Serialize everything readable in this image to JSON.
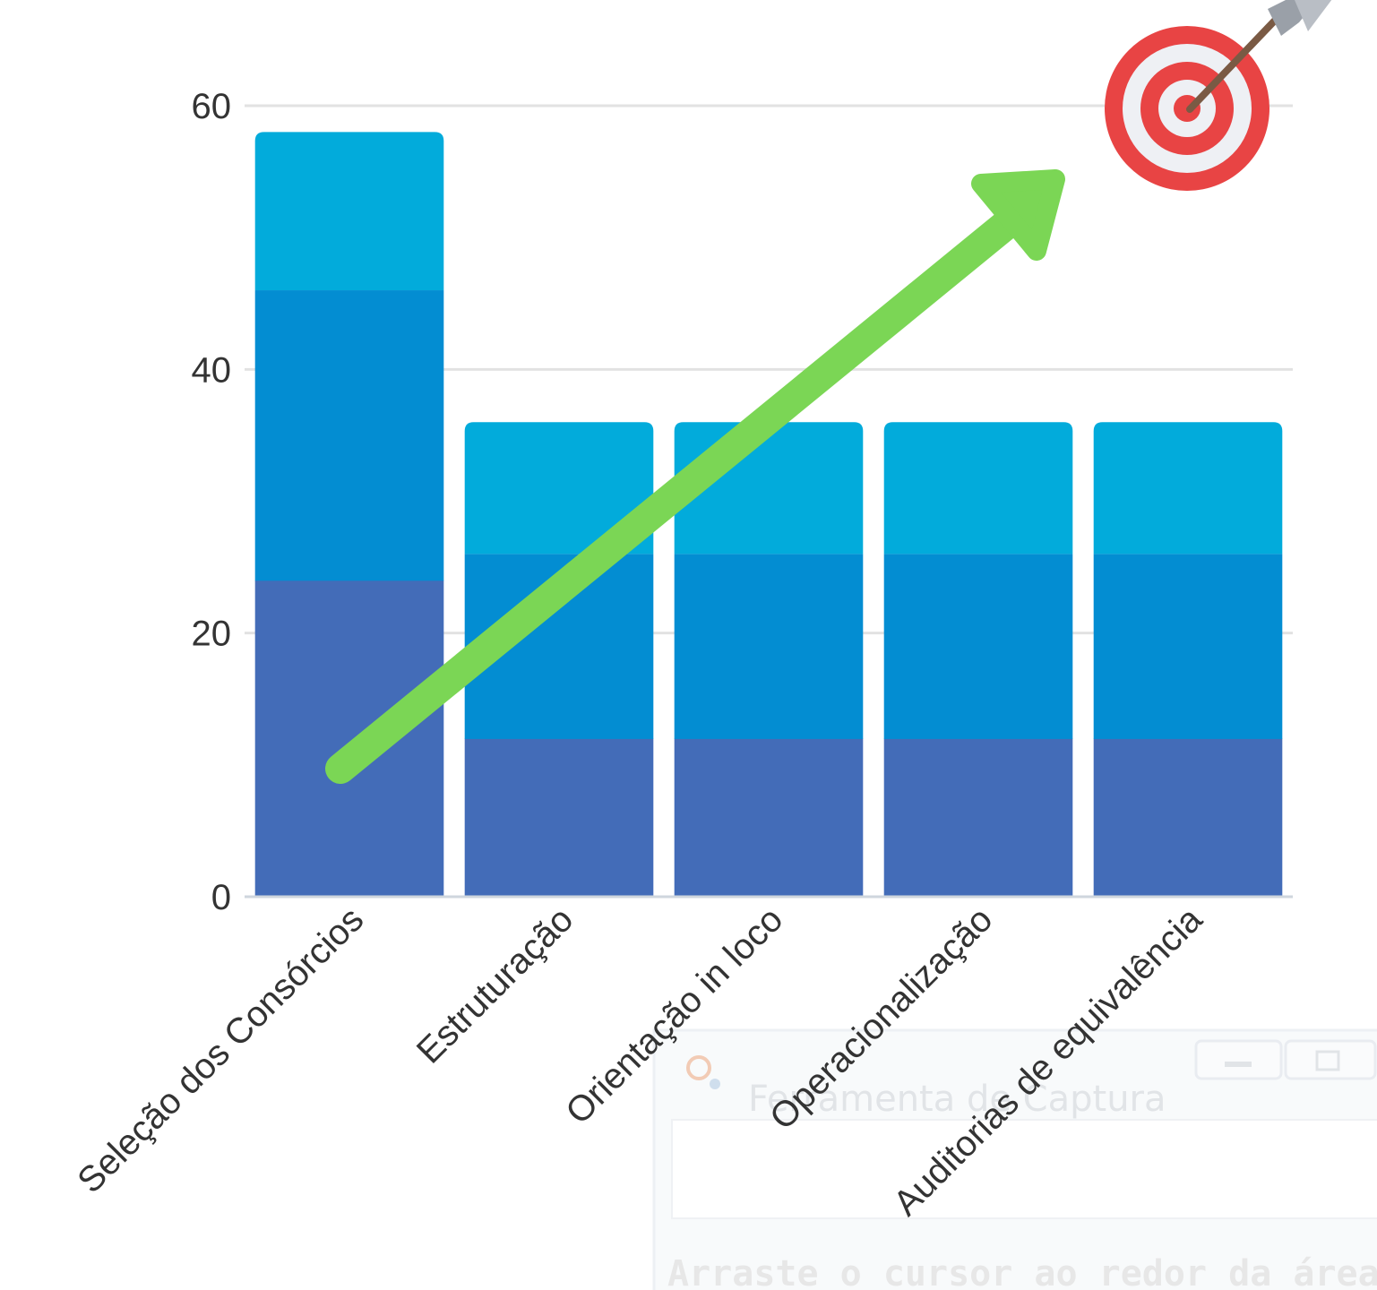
{
  "chart_data": {
    "type": "bar",
    "stacked": true,
    "categories": [
      "Seleção dos Consórcios",
      "Estruturação",
      "Orientação in loco",
      "Operacionalização",
      "Auditorias de equivalência"
    ],
    "series": [
      {
        "color": "#436cb8",
        "values": [
          24,
          12,
          12,
          12,
          12
        ]
      },
      {
        "color": "#038dd2",
        "values": [
          22,
          14,
          14,
          14,
          14
        ]
      },
      {
        "color": "#02abdb",
        "values": [
          12,
          10,
          10,
          10,
          10
        ]
      }
    ],
    "ylim": [
      0,
      60
    ],
    "y_ticks": [
      "0",
      "20",
      "40",
      "60"
    ],
    "grid": true,
    "legend": "none",
    "overlay": {
      "arrow_color": "#7bd655",
      "target_icon": "dart-target-icon"
    }
  },
  "background_window": {
    "title": "Ferramenta de Captura",
    "hint": "Arraste o cursor ao redor da área"
  }
}
